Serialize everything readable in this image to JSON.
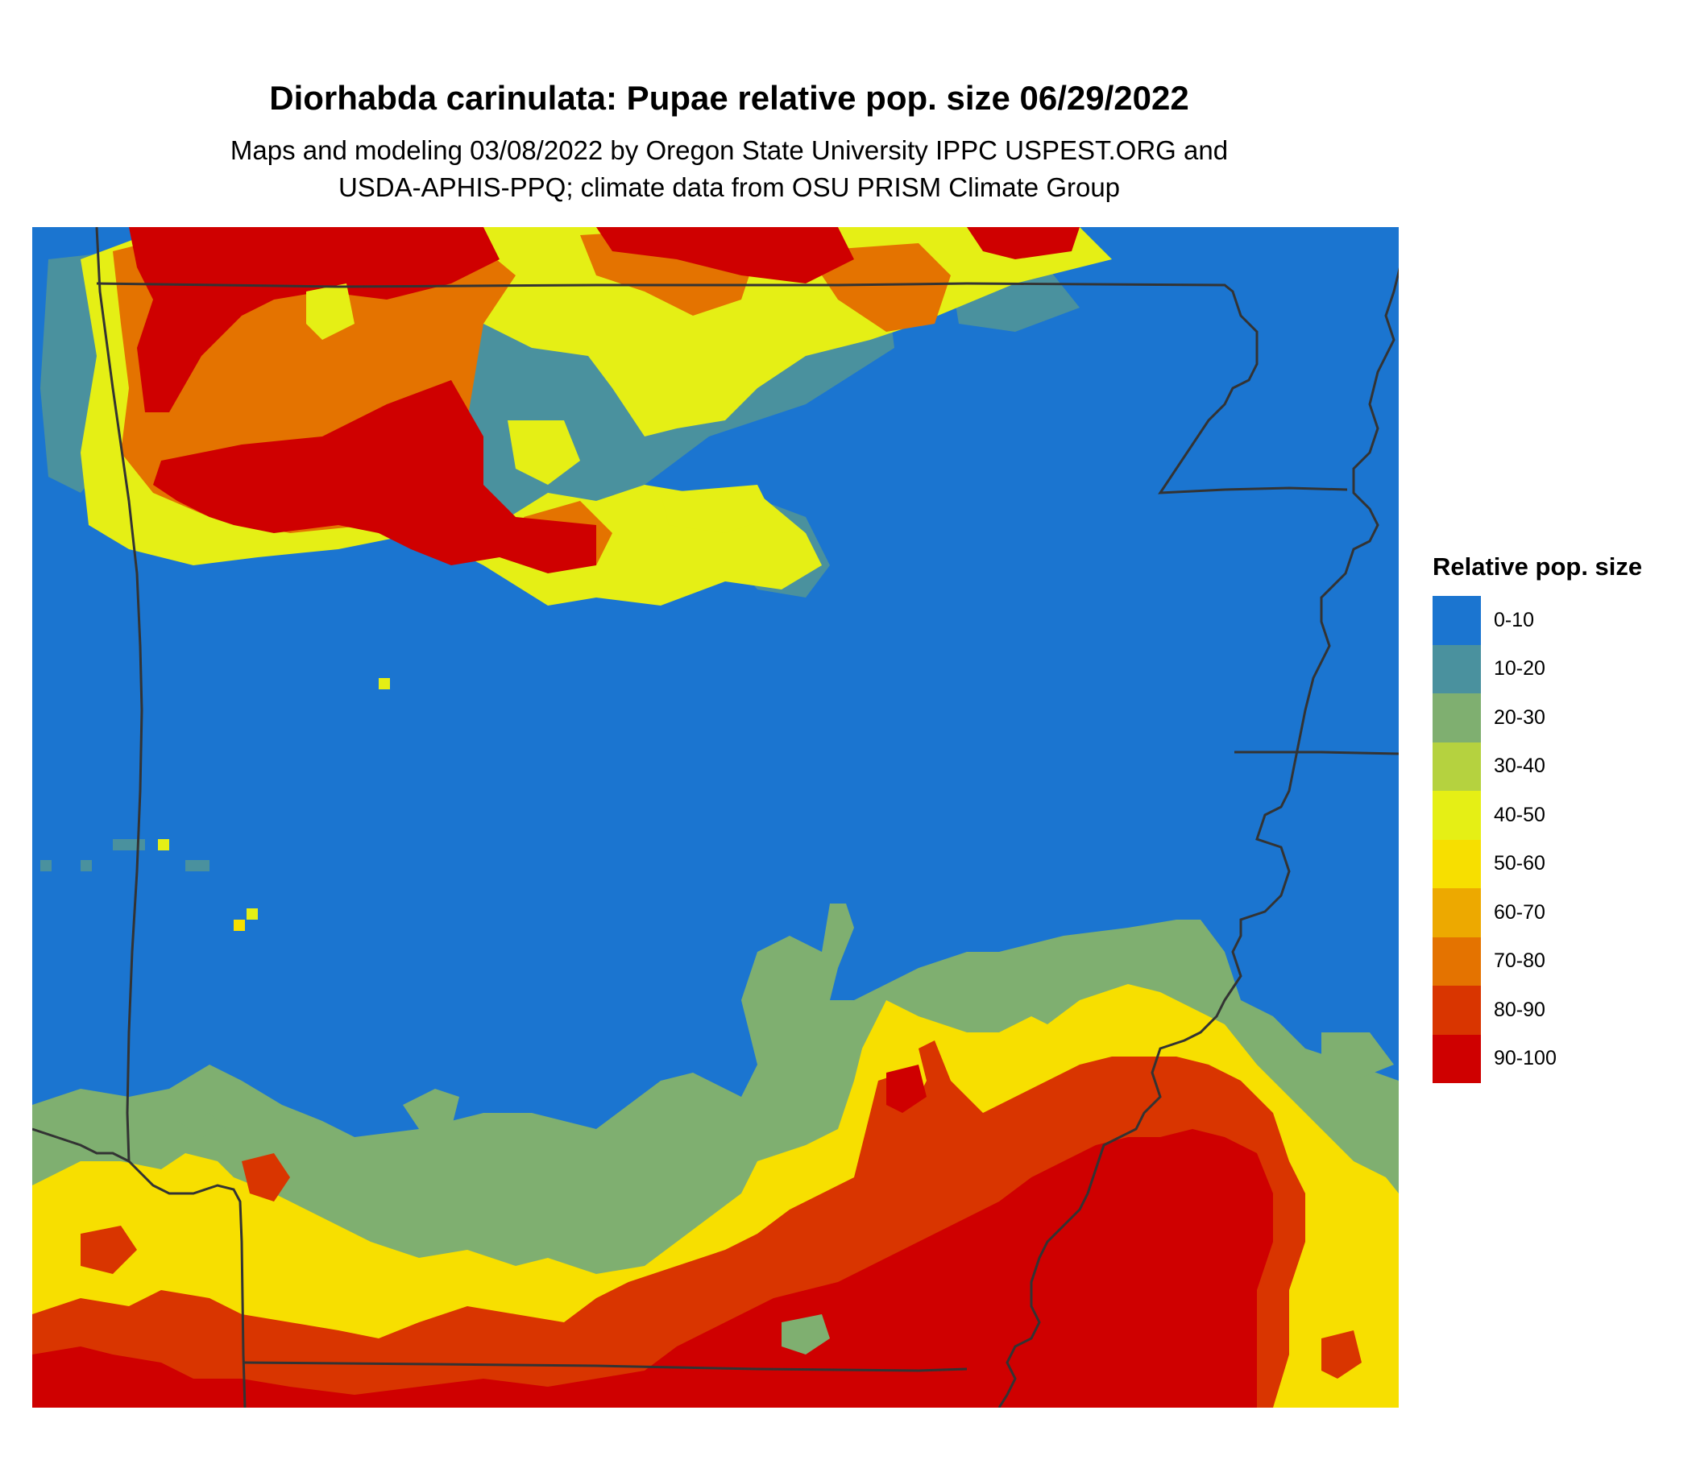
{
  "title": "Diorhabda carinulata: Pupae relative pop. size 06/29/2022",
  "subtitle_line1": "Maps and modeling 03/08/2022 by Oregon State University IPPC USPEST.ORG and",
  "subtitle_line2": "USDA-APHIS-PPQ; climate data from OSU PRISM Climate Group",
  "legend": {
    "title": "Relative pop. size",
    "items": [
      {
        "label": "0-10",
        "color": "#1b75d0"
      },
      {
        "label": "10-20",
        "color": "#4a919e"
      },
      {
        "label": "20-30",
        "color": "#7faf70"
      },
      {
        "label": "30-40",
        "color": "#b5d23f"
      },
      {
        "label": "40-50",
        "color": "#e5ef15"
      },
      {
        "label": "50-60",
        "color": "#f7df00"
      },
      {
        "label": "60-70",
        "color": "#eda900"
      },
      {
        "label": "70-80",
        "color": "#e47300"
      },
      {
        "label": "80-90",
        "color": "#d93500"
      },
      {
        "label": "90-100",
        "color": "#cf0000"
      }
    ]
  },
  "colors": {
    "boundary": "#333333",
    "background": "#ffffff"
  }
}
